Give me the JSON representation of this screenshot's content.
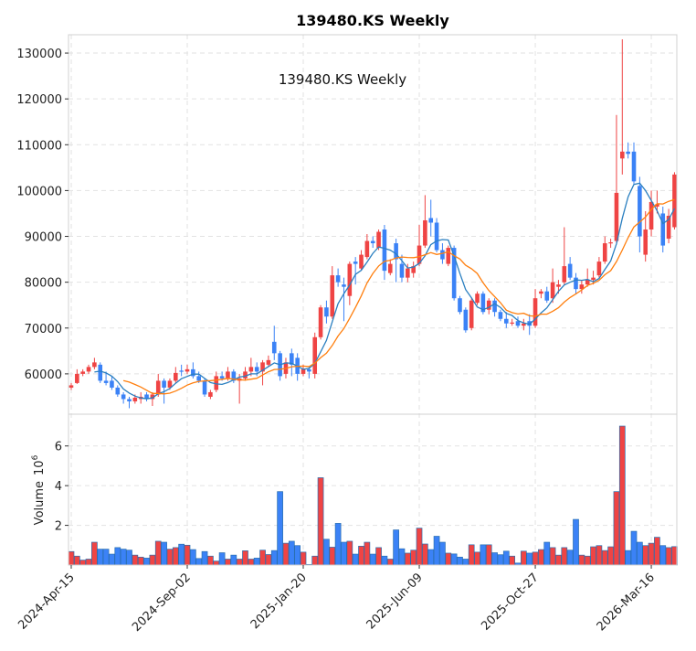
{
  "chart_data": {
    "type": "candlestick",
    "title": "139480.KS  Weekly",
    "annotation": "139480.KS  Weekly",
    "colors": {
      "up": "#ef4444",
      "down": "#3b82f6",
      "ma_short": "#2a7fc0",
      "ma_long": "#ff7f0e",
      "volume_edge": "#2a6fb0"
    },
    "moving_averages": [
      {
        "period": 5,
        "color_key": "ma_short"
      },
      {
        "period": 10,
        "color_key": "ma_long"
      }
    ],
    "price_axis": {
      "ylim": [
        51200,
        134000
      ],
      "ticks": [
        60000,
        70000,
        80000,
        90000,
        100000,
        110000,
        120000,
        130000
      ],
      "tick_labels": [
        "60000",
        "70000",
        "80000",
        "90000",
        "100000",
        "110000",
        "120000",
        "130000"
      ]
    },
    "volume_axis": {
      "label": "Volume",
      "unit_label": "10",
      "unit_exp": "6",
      "ylim": [
        0,
        7.6
      ],
      "ticks": [
        2,
        4,
        6
      ],
      "tick_labels": [
        "2",
        "4",
        "6"
      ]
    },
    "x_axis": {
      "tick_index": [
        0,
        20,
        40,
        60,
        80,
        100
      ],
      "tick_labels": [
        "2024-Apr-15",
        "2024-Sep-02",
        "2025-Jan-20",
        "2025-Jun-09",
        "2025-Oct-27",
        "2026-Mar-16"
      ]
    },
    "ohlc": [
      [
        57000,
        58000,
        56500,
        57500
      ],
      [
        58000,
        61000,
        57800,
        60000
      ],
      [
        60000,
        61000,
        59500,
        60500
      ],
      [
        60500,
        62000,
        60000,
        61500
      ],
      [
        61500,
        63500,
        61000,
        62500
      ],
      [
        62000,
        62500,
        58000,
        58500
      ],
      [
        58500,
        60500,
        57500,
        58000
      ],
      [
        58500,
        59500,
        56500,
        57000
      ],
      [
        57000,
        57500,
        55000,
        55500
      ],
      [
        55500,
        56000,
        53500,
        54500
      ],
      [
        54500,
        55000,
        52500,
        54000
      ],
      [
        54000,
        55500,
        53500,
        54800
      ],
      [
        54500,
        56000,
        53500,
        55000
      ],
      [
        55500,
        56000,
        54000,
        54500
      ],
      [
        54500,
        56000,
        53000,
        55500
      ],
      [
        55500,
        60000,
        55000,
        58500
      ],
      [
        58500,
        59000,
        53500,
        57000
      ],
      [
        57000,
        59000,
        56500,
        58500
      ],
      [
        58500,
        61500,
        58000,
        60200
      ],
      [
        60700,
        62000,
        59500,
        60500
      ],
      [
        60500,
        62000,
        60000,
        61000
      ],
      [
        61000,
        62500,
        59000,
        59500
      ],
      [
        59500,
        60500,
        58000,
        58500
      ],
      [
        58500,
        59000,
        55000,
        55500
      ],
      [
        55000,
        56500,
        54500,
        56000
      ],
      [
        56500,
        60500,
        56000,
        59500
      ],
      [
        59500,
        60500,
        58500,
        59000
      ],
      [
        59000,
        61500,
        58500,
        60500
      ],
      [
        60500,
        61000,
        58000,
        58500
      ],
      [
        58500,
        60000,
        53500,
        59000
      ],
      [
        59000,
        61500,
        58500,
        60500
      ],
      [
        60500,
        63500,
        59500,
        61500
      ],
      [
        61500,
        62500,
        59500,
        60500
      ],
      [
        60500,
        63000,
        57500,
        62500
      ],
      [
        62000,
        64000,
        61500,
        63000
      ],
      [
        67000,
        70500,
        63000,
        64500
      ],
      [
        64500,
        65000,
        58500,
        59500
      ],
      [
        60000,
        63500,
        59000,
        62500
      ],
      [
        64500,
        65500,
        59500,
        62000
      ],
      [
        63500,
        64500,
        58500,
        60000
      ],
      [
        60000,
        62000,
        59500,
        61000
      ],
      [
        61000,
        61500,
        59000,
        60500
      ],
      [
        60000,
        69000,
        59000,
        68000
      ],
      [
        68000,
        75000,
        67500,
        74500
      ],
      [
        74500,
        76000,
        71000,
        72500
      ],
      [
        72500,
        83500,
        72000,
        81500
      ],
      [
        81500,
        83000,
        79000,
        80000
      ],
      [
        79500,
        81000,
        71500,
        79000
      ],
      [
        77000,
        84500,
        75000,
        84000
      ],
      [
        84500,
        85500,
        79500,
        84000
      ],
      [
        83000,
        87000,
        82500,
        86000
      ],
      [
        85500,
        90500,
        85000,
        89000
      ],
      [
        89000,
        90000,
        87500,
        88500
      ],
      [
        87500,
        91500,
        87000,
        91000
      ],
      [
        91500,
        92500,
        80500,
        82500
      ],
      [
        82000,
        85000,
        81500,
        84000
      ],
      [
        88500,
        89500,
        80000,
        85000
      ],
      [
        84000,
        86000,
        80000,
        81000
      ],
      [
        81000,
        84000,
        80000,
        83000
      ],
      [
        82000,
        84500,
        81000,
        83500
      ],
      [
        84000,
        92500,
        83500,
        88000
      ],
      [
        88000,
        99000,
        87500,
        93500
      ],
      [
        94000,
        98000,
        90000,
        93000
      ],
      [
        93000,
        94000,
        86500,
        87000
      ],
      [
        87000,
        88500,
        84000,
        85000
      ],
      [
        84000,
        88000,
        83500,
        87500
      ],
      [
        87500,
        88000,
        76000,
        76500
      ],
      [
        76500,
        77000,
        73000,
        73500
      ],
      [
        74000,
        74500,
        69000,
        69500
      ],
      [
        70000,
        76500,
        69500,
        76000
      ],
      [
        75500,
        78000,
        75000,
        77500
      ],
      [
        77500,
        78000,
        73000,
        73500
      ],
      [
        74000,
        76500,
        73000,
        76000
      ],
      [
        76000,
        76500,
        72500,
        73500
      ],
      [
        73500,
        74000,
        71500,
        72000
      ],
      [
        72000,
        73500,
        70000,
        71000
      ],
      [
        71000,
        72000,
        70500,
        71200
      ],
      [
        71500,
        72500,
        70000,
        70500
      ],
      [
        70500,
        72000,
        69500,
        71000
      ],
      [
        71500,
        73000,
        68500,
        70500
      ],
      [
        70500,
        78500,
        70000,
        76500
      ],
      [
        77500,
        78500,
        76500,
        78000
      ],
      [
        78000,
        79000,
        75500,
        76000
      ],
      [
        76500,
        83000,
        75500,
        80000
      ],
      [
        79000,
        80500,
        77500,
        79500
      ],
      [
        80000,
        92000,
        79500,
        83500
      ],
      [
        84000,
        85500,
        80500,
        81000
      ],
      [
        81000,
        82000,
        77500,
        78500
      ],
      [
        78500,
        80500,
        77500,
        79500
      ],
      [
        79500,
        83000,
        79000,
        80500
      ],
      [
        80500,
        82500,
        79500,
        81000
      ],
      [
        81500,
        85500,
        81000,
        84500
      ],
      [
        84500,
        90000,
        84000,
        88500
      ],
      [
        88500,
        89500,
        87500,
        88700
      ],
      [
        89000,
        116500,
        88500,
        99500
      ],
      [
        107000,
        133000,
        103500,
        108500
      ],
      [
        108500,
        110500,
        107000,
        108000
      ],
      [
        108500,
        110500,
        101500,
        102000
      ],
      [
        101000,
        103000,
        86500,
        90000
      ],
      [
        86000,
        95500,
        84500,
        91500
      ],
      [
        91500,
        100000,
        90000,
        97500
      ],
      [
        96500,
        100000,
        95000,
        97000
      ],
      [
        95000,
        96500,
        86500,
        88000
      ],
      [
        89500,
        96000,
        88500,
        94500
      ],
      [
        92000,
        104000,
        91500,
        103500
      ]
    ],
    "volume_millions": [
      0.68,
      0.45,
      0.25,
      0.3,
      1.15,
      0.8,
      0.8,
      0.55,
      0.88,
      0.8,
      0.75,
      0.5,
      0.4,
      0.35,
      0.5,
      1.2,
      1.15,
      0.8,
      0.88,
      1.05,
      1.0,
      0.78,
      0.33,
      0.68,
      0.45,
      0.2,
      0.62,
      0.3,
      0.5,
      0.3,
      0.72,
      0.3,
      0.35,
      0.75,
      0.53,
      0.73,
      3.7,
      1.1,
      1.2,
      0.98,
      0.65,
      0.03,
      0.45,
      4.4,
      1.3,
      0.9,
      2.1,
      1.15,
      1.2,
      0.55,
      0.95,
      1.15,
      0.55,
      0.88,
      0.45,
      0.3,
      1.77,
      0.82,
      0.6,
      0.75,
      1.86,
      1.06,
      0.78,
      1.45,
      1.15,
      0.6,
      0.56,
      0.4,
      0.3,
      1.02,
      0.65,
      1.02,
      1.02,
      0.62,
      0.52,
      0.7,
      0.45,
      0.1,
      0.7,
      0.6,
      0.65,
      0.78,
      1.15,
      0.88,
      0.5,
      0.88,
      0.75,
      2.3,
      0.5,
      0.45,
      0.92,
      0.98,
      0.73,
      0.92,
      3.7,
      7.0,
      0.73,
      1.7,
      1.15,
      0.98,
      1.1,
      1.4,
      0.98,
      0.88,
      0.93
    ]
  }
}
